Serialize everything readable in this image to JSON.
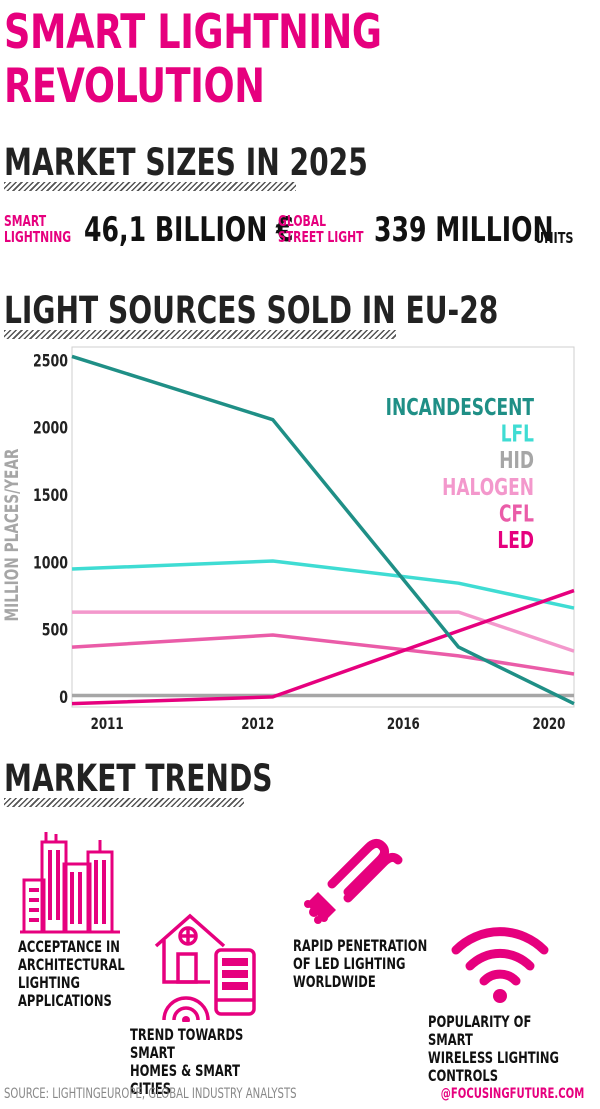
{
  "title_line1": "SMART LIGHTNING",
  "title_line2": "REVOLUTION",
  "section_market_sizes": "MARKET SIZES IN 2025",
  "stats": {
    "smart": {
      "label_line1": "SMART",
      "label_line2": "LIGHTNING",
      "value": "46,1 BILLION €"
    },
    "street": {
      "label_line1": "GLOBAL",
      "label_line2": "STREET LIGHT",
      "value": "339 MILLION",
      "unit": "UNITS"
    }
  },
  "section_light_sources": "LIGHT SOURCES SOLD IN EU-28",
  "section_trends": "MARKET TRENDS",
  "trends": [
    {
      "label": "ACCEPTANCE IN\nARCHITECTURAL\nLIGHTING\nAPPLICATIONS",
      "icon": "city-buildings-icon"
    },
    {
      "label": "TREND TOWARDS SMART\nHOMES & SMART CITIES",
      "icon": "smart-home-icon"
    },
    {
      "label": "RAPID PENETRATION\nOF LED LIGHTING\nWORLDWIDE",
      "icon": "cfl-bulb-icon"
    },
    {
      "label": "POPULARITY OF SMART\nWIRELESS LIGHTING\nCONTROLS",
      "icon": "wifi-icon"
    }
  ],
  "footer": {
    "source": "SOURCE: LIGHTINGEUROPE, GLOBAL INDUSTRY ANALYSTS",
    "handle": "@FOCUSINGFUTURE.COM"
  },
  "colors": {
    "accent": "#e6007e",
    "incandescent": "#1f8f86",
    "lfl": "#3fdcd3",
    "hid": "#a6a6a6",
    "halogen": "#f398cc",
    "cfl": "#ea5ca8",
    "led": "#e6007e"
  },
  "chart_data": {
    "type": "line",
    "categories": [
      "2011",
      "2012",
      "2016",
      "2020"
    ],
    "ylabel": "MILLION PLACES/YEAR",
    "yticks": [
      0,
      500,
      1000,
      1500,
      2000,
      2500
    ],
    "ylim": [
      -75,
      2600
    ],
    "legend_position": "top-right",
    "series": [
      {
        "name": "INCANDESCENT",
        "color": "#1f8f86",
        "points": [
          [
            0,
            2530
          ],
          [
            0.4,
            2060
          ],
          [
            0.77,
            370
          ],
          [
            1,
            -50
          ]
        ]
      },
      {
        "name": "LFL",
        "color": "#3fdcd3",
        "points": [
          [
            0,
            950
          ],
          [
            0.4,
            1010
          ],
          [
            0.77,
            845
          ],
          [
            1,
            660
          ]
        ]
      },
      {
        "name": "HID",
        "color": "#a6a6a6",
        "points": [
          [
            0,
            10
          ],
          [
            0.4,
            10
          ],
          [
            0.77,
            10
          ],
          [
            1,
            10
          ]
        ]
      },
      {
        "name": "HALOGEN",
        "color": "#f398cc",
        "points": [
          [
            0,
            630
          ],
          [
            0.4,
            630
          ],
          [
            0.77,
            630
          ],
          [
            1,
            340
          ]
        ]
      },
      {
        "name": "CFL",
        "color": "#ea5ca8",
        "points": [
          [
            0,
            370
          ],
          [
            0.4,
            460
          ],
          [
            0.77,
            305
          ],
          [
            1,
            170
          ]
        ]
      },
      {
        "name": "LED",
        "color": "#e6007e",
        "points": [
          [
            0,
            -50
          ],
          [
            0.4,
            0
          ],
          [
            0.77,
            490
          ],
          [
            1,
            790
          ]
        ]
      }
    ]
  }
}
